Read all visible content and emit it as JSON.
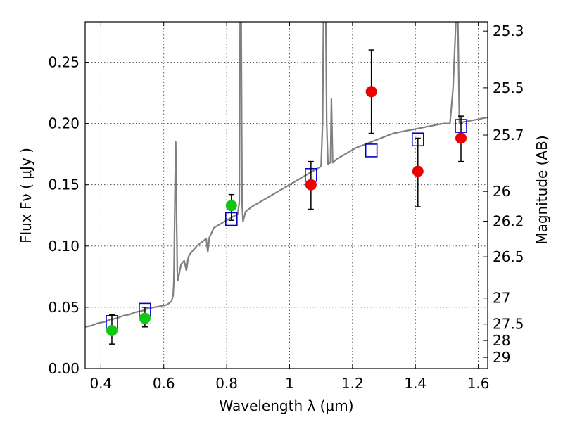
{
  "chart_data": {
    "type": "scatter",
    "title": "",
    "xlabel": "Wavelength  λ (μm)",
    "ylabel": "Flux  Fν  ( μJy )",
    "ylabel_right": "Magnitude (AB)",
    "xlim": [
      0.35,
      1.63
    ],
    "ylim": [
      0.0,
      0.283
    ],
    "grid": true,
    "xticks": [
      {
        "value": 0.4,
        "label": "0.4"
      },
      {
        "value": 0.6,
        "label": "0.6"
      },
      {
        "value": 0.8,
        "label": "0.8"
      },
      {
        "value": 1.0,
        "label": "1"
      },
      {
        "value": 1.2,
        "label": "1.2"
      },
      {
        "value": 1.4,
        "label": "1.4"
      },
      {
        "value": 1.6,
        "label": "1.6"
      }
    ],
    "yticks": [
      {
        "value": 0.0,
        "label": "0.00"
      },
      {
        "value": 0.05,
        "label": "0.05"
      },
      {
        "value": 0.1,
        "label": "0.10"
      },
      {
        "value": 0.15,
        "label": "0.15"
      },
      {
        "value": 0.2,
        "label": "0.20"
      },
      {
        "value": 0.25,
        "label": "0.25"
      }
    ],
    "yticks_right": [
      {
        "value": 25.3,
        "label": "25.3"
      },
      {
        "value": 25.5,
        "label": "25.5"
      },
      {
        "value": 25.7,
        "label": "25.7"
      },
      {
        "value": 26.0,
        "label": "26"
      },
      {
        "value": 26.2,
        "label": "26.2"
      },
      {
        "value": 26.5,
        "label": "26.5"
      },
      {
        "value": 27.0,
        "label": "27"
      },
      {
        "value": 27.5,
        "label": "27.5"
      },
      {
        "value": 28.0,
        "label": "28"
      },
      {
        "value": 29.0,
        "label": "29"
      }
    ],
    "series": [
      {
        "type": "line",
        "color": "#808080",
        "points": [
          [
            0.35,
            0.034
          ],
          [
            0.37,
            0.035
          ],
          [
            0.39,
            0.037
          ],
          [
            0.41,
            0.038
          ],
          [
            0.43,
            0.04
          ],
          [
            0.45,
            0.041
          ],
          [
            0.47,
            0.043
          ],
          [
            0.49,
            0.044
          ],
          [
            0.51,
            0.046
          ],
          [
            0.53,
            0.047
          ],
          [
            0.55,
            0.049
          ],
          [
            0.57,
            0.05
          ],
          [
            0.59,
            0.051
          ],
          [
            0.61,
            0.052
          ],
          [
            0.625,
            0.055
          ],
          [
            0.63,
            0.06
          ],
          [
            0.632,
            0.07
          ],
          [
            0.633,
            0.09
          ],
          [
            0.634,
            0.11
          ],
          [
            0.635,
            0.13
          ],
          [
            0.636,
            0.15
          ],
          [
            0.637,
            0.17
          ],
          [
            0.638,
            0.185
          ],
          [
            0.639,
            0.17
          ],
          [
            0.64,
            0.15
          ],
          [
            0.641,
            0.12
          ],
          [
            0.642,
            0.1
          ],
          [
            0.643,
            0.08
          ],
          [
            0.645,
            0.072
          ],
          [
            0.655,
            0.085
          ],
          [
            0.665,
            0.088
          ],
          [
            0.672,
            0.08
          ],
          [
            0.678,
            0.091
          ],
          [
            0.685,
            0.094
          ],
          [
            0.695,
            0.097
          ],
          [
            0.705,
            0.1
          ],
          [
            0.715,
            0.102
          ],
          [
            0.725,
            0.104
          ],
          [
            0.735,
            0.106
          ],
          [
            0.74,
            0.095
          ],
          [
            0.745,
            0.107
          ],
          [
            0.76,
            0.115
          ],
          [
            0.78,
            0.118
          ],
          [
            0.8,
            0.121
          ],
          [
            0.82,
            0.124
          ],
          [
            0.835,
            0.126
          ],
          [
            0.84,
            0.135
          ],
          [
            0.843,
            0.29
          ],
          [
            0.846,
            0.29
          ],
          [
            0.849,
            0.135
          ],
          [
            0.852,
            0.12
          ],
          [
            0.86,
            0.128
          ],
          [
            0.88,
            0.132
          ],
          [
            0.9,
            0.135
          ],
          [
            0.92,
            0.138
          ],
          [
            0.94,
            0.141
          ],
          [
            0.96,
            0.144
          ],
          [
            0.98,
            0.147
          ],
          [
            1.0,
            0.15
          ],
          [
            1.02,
            0.153
          ],
          [
            1.04,
            0.156
          ],
          [
            1.06,
            0.159
          ],
          [
            1.08,
            0.162
          ],
          [
            1.1,
            0.165
          ],
          [
            1.105,
            0.2
          ],
          [
            1.108,
            0.29
          ],
          [
            1.115,
            0.29
          ],
          [
            1.118,
            0.2
          ],
          [
            1.122,
            0.167
          ],
          [
            1.13,
            0.168
          ],
          [
            1.133,
            0.22
          ],
          [
            1.137,
            0.168
          ],
          [
            1.15,
            0.171
          ],
          [
            1.17,
            0.174
          ],
          [
            1.19,
            0.177
          ],
          [
            1.21,
            0.18
          ],
          [
            1.23,
            0.182
          ],
          [
            1.25,
            0.184
          ],
          [
            1.27,
            0.186
          ],
          [
            1.29,
            0.188
          ],
          [
            1.31,
            0.19
          ],
          [
            1.33,
            0.192
          ],
          [
            1.35,
            0.193
          ],
          [
            1.37,
            0.194
          ],
          [
            1.39,
            0.195
          ],
          [
            1.41,
            0.196
          ],
          [
            1.43,
            0.197
          ],
          [
            1.45,
            0.198
          ],
          [
            1.47,
            0.199
          ],
          [
            1.49,
            0.2
          ],
          [
            1.51,
            0.2
          ],
          [
            1.52,
            0.229
          ],
          [
            1.53,
            0.29
          ],
          [
            1.535,
            0.29
          ],
          [
            1.54,
            0.2
          ],
          [
            1.55,
            0.201
          ],
          [
            1.57,
            0.202
          ],
          [
            1.59,
            0.203
          ],
          [
            1.61,
            0.204
          ],
          [
            1.63,
            0.205
          ]
        ]
      },
      {
        "type": "marker",
        "marker": "open-square",
        "color": "#0000cc",
        "points": [
          [
            0.435,
            0.038
          ],
          [
            0.54,
            0.048
          ],
          [
            0.815,
            0.122
          ],
          [
            1.068,
            0.158
          ],
          [
            1.26,
            0.178
          ],
          [
            1.408,
            0.187
          ],
          [
            1.545,
            0.198
          ]
        ]
      },
      {
        "type": "marker",
        "marker": "filled-circle",
        "color": "#11c711",
        "points": [
          {
            "x": 0.435,
            "y": 0.031,
            "err": [
              0.02,
              0.044
            ]
          },
          {
            "x": 0.54,
            "y": 0.041,
            "err": [
              0.034,
              0.05
            ]
          },
          {
            "x": 0.815,
            "y": 0.133,
            "err": [
              0.121,
              0.142
            ]
          }
        ]
      },
      {
        "type": "marker",
        "marker": "filled-circle",
        "color": "#ee0000",
        "points": [
          {
            "x": 1.068,
            "y": 0.15,
            "err": [
              0.13,
              0.169
            ]
          },
          {
            "x": 1.26,
            "y": 0.226,
            "err": [
              0.192,
              0.26
            ]
          },
          {
            "x": 1.408,
            "y": 0.161,
            "err": [
              0.132,
              0.188
            ]
          },
          {
            "x": 1.545,
            "y": 0.188,
            "err": [
              0.169,
              0.206
            ]
          }
        ]
      }
    ]
  }
}
